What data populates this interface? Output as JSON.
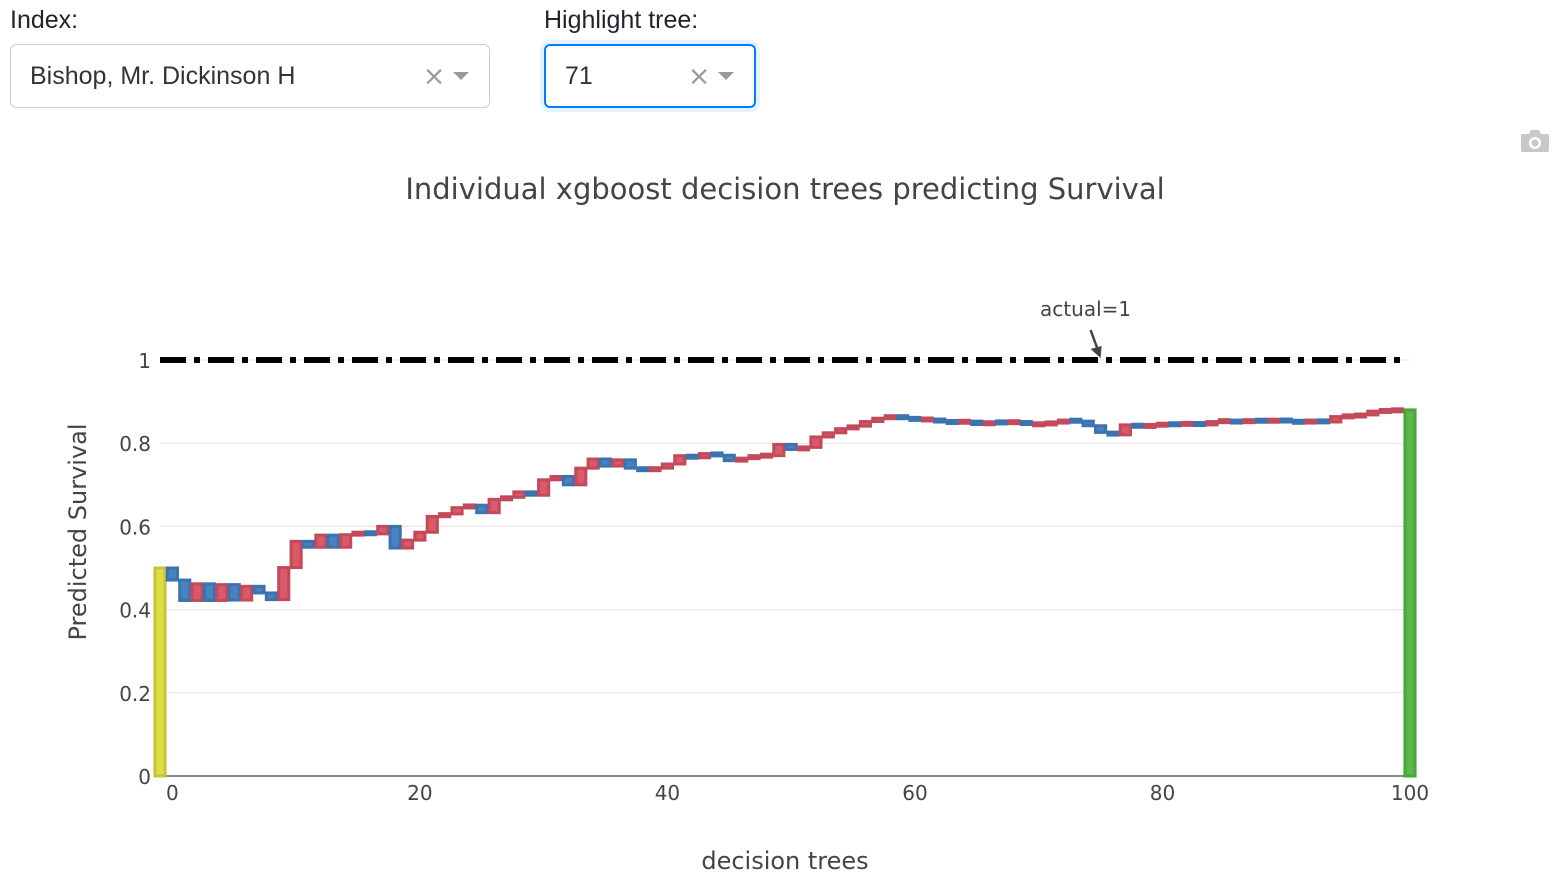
{
  "controls": {
    "index_label": "Index:",
    "index_value": "Bishop, Mr. Dickinson H",
    "highlight_label": "Highlight tree:",
    "highlight_value": "71",
    "clear_glyph": "×"
  },
  "toolbar": {
    "camera_icon": "camera-icon"
  },
  "colors": {
    "increase": "#d95a68",
    "decrease": "#4a81bf",
    "base": "#e0dc44",
    "final": "#5cb84a",
    "actual_line": "#000000",
    "grid": "#e6e6e6"
  },
  "chart_data": {
    "type": "bar",
    "title": "Individual xgboost decision trees predicting Survival",
    "xlabel": "decision trees",
    "ylabel": "Predicted Survival",
    "xlim": [
      -1,
      100
    ],
    "ylim": [
      0,
      1
    ],
    "xticks": [
      0,
      20,
      40,
      60,
      80,
      100
    ],
    "xtick_labels": [
      "0",
      "20",
      "40",
      "60",
      "80",
      "100"
    ],
    "yticks": [
      0,
      0.2,
      0.4,
      0.6,
      0.8,
      1
    ],
    "ytick_labels": [
      "0",
      "0.2",
      "0.4",
      "0.6",
      "0.8",
      "1"
    ],
    "base_value": 0.5,
    "final_value": 0.88,
    "actual_value": 1,
    "annotation": "actual=1",
    "annotation_x": 75,
    "cumulative": [
      0.5,
      0.471,
      0.422,
      0.462,
      0.422,
      0.46,
      0.423,
      0.456,
      0.44,
      0.424,
      0.501,
      0.564,
      0.55,
      0.579,
      0.55,
      0.58,
      0.585,
      0.582,
      0.6,
      0.548,
      0.567,
      0.586,
      0.624,
      0.63,
      0.645,
      0.651,
      0.633,
      0.665,
      0.67,
      0.683,
      0.675,
      0.712,
      0.72,
      0.7,
      0.74,
      0.762,
      0.745,
      0.76,
      0.74,
      0.735,
      0.74,
      0.75,
      0.77,
      0.765,
      0.775,
      0.771,
      0.758,
      0.763,
      0.77,
      0.77,
      0.797,
      0.785,
      0.79,
      0.815,
      0.825,
      0.835,
      0.841,
      0.852,
      0.86,
      0.865,
      0.86,
      0.857,
      0.857,
      0.852,
      0.85,
      0.853,
      0.845,
      0.851,
      0.849,
      0.852,
      0.845,
      0.846,
      0.849,
      0.855,
      0.853,
      0.842,
      0.826,
      0.82,
      0.844,
      0.84,
      0.843,
      0.846,
      0.845,
      0.848,
      0.844,
      0.852,
      0.854,
      0.85,
      0.856,
      0.852,
      0.856,
      0.853,
      0.85,
      0.854,
      0.851,
      0.864,
      0.865,
      0.868,
      0.877,
      0.878,
      0.88
    ]
  }
}
